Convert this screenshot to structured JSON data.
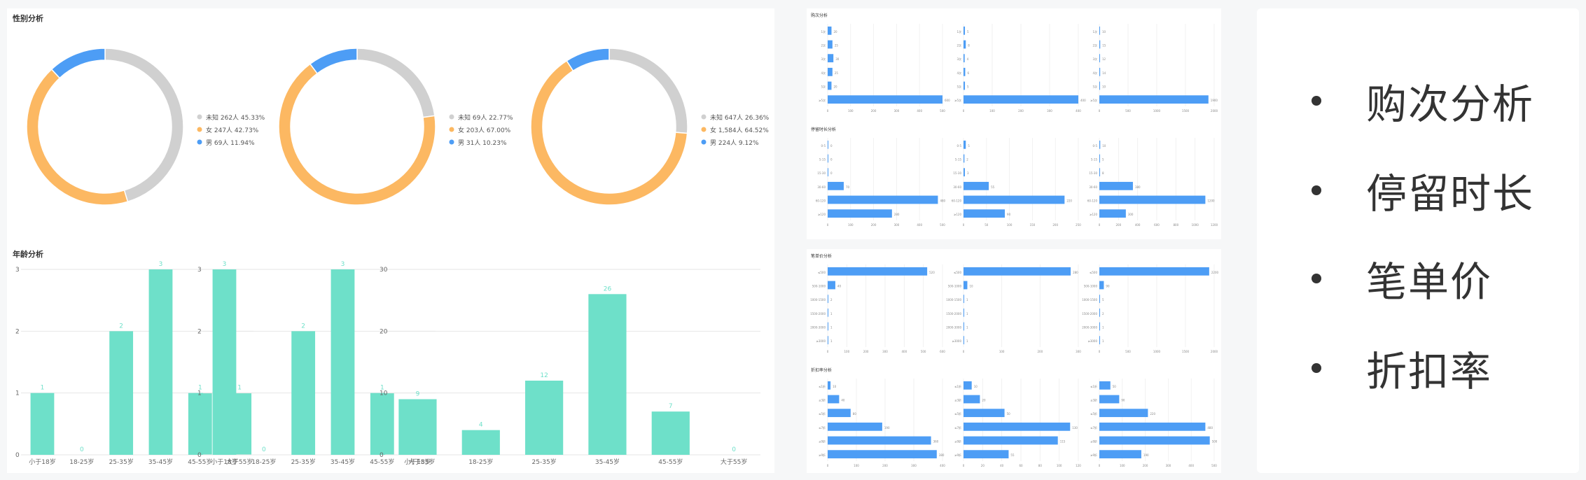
{
  "left": {
    "gender_title": "性别分析",
    "age_title": "年龄分析"
  },
  "bullets": [
    "购次分析",
    "停留时长",
    "笔单价",
    "折扣率"
  ],
  "colors": {
    "unknown": "#d0d0d0",
    "female": "#fcb862",
    "male": "#4d9df5",
    "bar": "#6ee0c9",
    "hbar": "#4d9df5"
  },
  "chart_data": [
    {
      "type": "pie",
      "id": "gender-1",
      "donut": true,
      "slices": [
        {
          "label": "未知",
          "value_text": "262人 45.33%",
          "value": 45.33
        },
        {
          "label": "女",
          "value_text": "247人 42.73%",
          "value": 42.73
        },
        {
          "label": "男",
          "value_text": "69人 11.94%",
          "value": 11.94
        }
      ]
    },
    {
      "type": "pie",
      "id": "gender-2",
      "donut": true,
      "slices": [
        {
          "label": "未知",
          "value_text": "69人 22.77%",
          "value": 22.77
        },
        {
          "label": "女",
          "value_text": "203人 67.00%",
          "value": 67.0
        },
        {
          "label": "男",
          "value_text": "31人 10.23%",
          "value": 10.23
        }
      ]
    },
    {
      "type": "pie",
      "id": "gender-3",
      "donut": true,
      "slices": [
        {
          "label": "未知",
          "value_text": "647人 26.36%",
          "value": 26.36
        },
        {
          "label": "女",
          "value_text": "1,584人 64.52%",
          "value": 64.52
        },
        {
          "label": "男",
          "value_text": "224人 9.12%",
          "value": 9.12
        }
      ]
    },
    {
      "type": "bar",
      "id": "age-1",
      "categories": [
        "小于18岁",
        "18-25岁",
        "25-35岁",
        "35-45岁",
        "45-55岁",
        "大于55岁"
      ],
      "values": [
        1,
        0,
        2,
        3,
        1,
        1
      ],
      "ylim": [
        0,
        3
      ],
      "yticks": [
        0,
        1,
        2,
        3
      ]
    },
    {
      "type": "bar",
      "id": "age-2",
      "categories": [
        "小于18岁",
        "18-25岁",
        "25-35岁",
        "35-45岁",
        "45-55岁",
        "大于55岁"
      ],
      "values": [
        3,
        0,
        2,
        3,
        1,
        0
      ],
      "ylim": [
        0,
        3
      ],
      "yticks": [
        0,
        1,
        2,
        3
      ]
    },
    {
      "type": "bar",
      "id": "age-3",
      "categories": [
        "小于18岁",
        "18-25岁",
        "25-35岁",
        "35-45岁",
        "45-55岁",
        "大于55岁"
      ],
      "values": [
        9,
        4,
        12,
        26,
        7,
        0
      ],
      "ylim": [
        0,
        30
      ],
      "yticks": [
        0,
        10,
        20,
        30
      ]
    }
  ],
  "right_panels": [
    {
      "title": "购次分析",
      "groups": [
        {
          "values": [
            20,
            25,
            30,
            25,
            20,
            600
          ],
          "xmax": 600,
          "xticks": [
            "0",
            "100",
            "200",
            "300",
            "400",
            "500"
          ],
          "rows": [
            "1次",
            "2次",
            "3次",
            "4次",
            "5次",
            "≥5次"
          ]
        },
        {
          "values": [
            5,
            8,
            4,
            6,
            5,
            400
          ],
          "xmax": 400,
          "xticks": [
            "0",
            "100",
            "200",
            "300",
            "400"
          ],
          "rows": [
            "1次",
            "2次",
            "3次",
            "4次",
            "5次",
            "≥5次"
          ]
        },
        {
          "values": [
            10,
            15,
            12,
            14,
            10,
            1900
          ],
          "xmax": 2000,
          "xticks": [
            "0",
            "500",
            "1000",
            "1500",
            "2000"
          ],
          "rows": [
            "1次",
            "2次",
            "3次",
            "4次",
            "5次",
            "≥5次"
          ]
        }
      ]
    },
    {
      "title": "停留时长分析",
      "groups": [
        {
          "values": [
            0,
            0,
            0,
            70,
            480,
            280
          ],
          "xmax": 500,
          "xticks": [
            "0",
            "100",
            "200",
            "300",
            "400",
            "500"
          ],
          "rows": [
            "0-5",
            "5-15",
            "15-30",
            "30-60",
            "60-120",
            "≥120"
          ]
        },
        {
          "values": [
            5,
            2,
            3,
            55,
            220,
            90
          ],
          "xmax": 250,
          "xticks": [
            "0",
            "50",
            "100",
            "150",
            "200",
            "250"
          ],
          "rows": [
            "0-5",
            "5-15",
            "15-30",
            "30-60",
            "60-120",
            "≥120"
          ]
        },
        {
          "values": [
            10,
            5,
            8,
            380,
            1200,
            300
          ],
          "xmax": 1300,
          "xticks": [
            "0",
            "200",
            "400",
            "600",
            "800",
            "1000",
            "1200"
          ],
          "rows": [
            "0-5",
            "5-15",
            "15-30",
            "30-60",
            "60-120",
            "≥120"
          ]
        }
      ]
    },
    {
      "title": "笔单价分析",
      "groups": [
        {
          "values": [
            520,
            40,
            2,
            1,
            1,
            1
          ],
          "xmax": 600,
          "xticks": [
            "0",
            "100",
            "200",
            "300",
            "400",
            "500",
            "600"
          ],
          "rows": [
            "≤500",
            "500-1000",
            "1000-1500",
            "1500-2000",
            "2000-3000",
            "≥3000"
          ]
        },
        {
          "values": [
            280,
            10,
            1,
            1,
            1,
            1
          ],
          "xmax": 300,
          "xticks": [
            "0",
            "100",
            "200",
            "300"
          ],
          "rows": [
            "≤500",
            "500-1000",
            "1000-1500",
            "1500-2000",
            "2000-3000",
            "≥3000"
          ]
        },
        {
          "values": [
            2200,
            90,
            5,
            2,
            1,
            1
          ],
          "xmax": 2300,
          "xticks": [
            "0",
            "500",
            "1000",
            "1500",
            "2000"
          ],
          "rows": [
            "≤500",
            "500-1000",
            "1000-1500",
            "1500-2000",
            "2000-3000",
            "≥3000"
          ]
        }
      ]
    },
    {
      "title": "折扣率分析",
      "groups": [
        {
          "values": [
            10,
            40,
            80,
            190,
            360,
            380
          ],
          "xmax": 400,
          "xticks": [
            "0",
            "100",
            "200",
            "300",
            "400"
          ],
          "rows": [
            "≤1折",
            "≤3折",
            "≤5折",
            "≤7折",
            "≤9折",
            "≥9折"
          ]
        },
        {
          "values": [
            10,
            20,
            50,
            130,
            115,
            55
          ],
          "xmax": 140,
          "xticks": [
            "0",
            "20",
            "40",
            "60",
            "80",
            "100",
            "120"
          ],
          "rows": [
            "≤1折",
            "≤3折",
            "≤5折",
            "≤7折",
            "≤9折",
            "≥9折"
          ]
        },
        {
          "values": [
            50,
            90,
            220,
            480,
            500,
            190
          ],
          "xmax": 520,
          "xticks": [
            "0",
            "100",
            "200",
            "300",
            "400",
            "500"
          ],
          "rows": [
            "≤1折",
            "≤3折",
            "≤5折",
            "≤7折",
            "≤9折",
            "≥9折"
          ]
        }
      ]
    }
  ]
}
